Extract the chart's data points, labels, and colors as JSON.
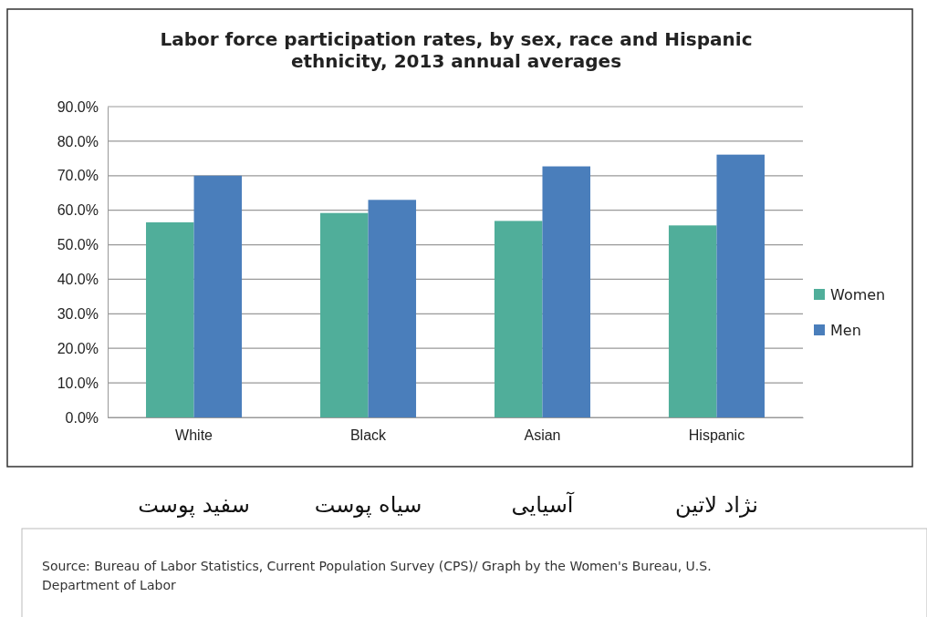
{
  "chart_data": {
    "type": "bar",
    "title": "Labor force participation rates, by sex, race and Hispanic ethnicity, 2013  annual averages",
    "categories": [
      "White",
      "Black",
      "Asian",
      "Hispanic"
    ],
    "series": [
      {
        "name": "Women",
        "color": "#50ae9a",
        "values": [
          56.5,
          59.2,
          56.9,
          55.6
        ]
      },
      {
        "name": "Men",
        "color": "#4a7ebb",
        "values": [
          70.0,
          63.0,
          72.7,
          76.1
        ]
      }
    ],
    "ylim": [
      0,
      90
    ],
    "yticks": [
      {
        "value": 0,
        "label": "0.0%"
      },
      {
        "value": 10,
        "label": "10.0%"
      },
      {
        "value": 20,
        "label": "20.0%"
      },
      {
        "value": 30,
        "label": "30.0%"
      },
      {
        "value": 40,
        "label": "40.0%"
      },
      {
        "value": 50,
        "label": "50.0%"
      },
      {
        "value": 60,
        "label": "60.0%"
      },
      {
        "value": 70,
        "label": "70.0%"
      },
      {
        "value": 80,
        "label": "80.0%"
      },
      {
        "value": 90,
        "label": "90.0%"
      }
    ],
    "grid": "y",
    "legend": "right",
    "annotations": [
      "سفید پوست",
      "سیاه پوست",
      "آسیایی",
      "نژاد لاتین",
      "Source: Bureau of Labor Statistics, Current Population Survey (CPS)/ Graph by the Women's Bureau, U.S. Department of Labor"
    ]
  }
}
